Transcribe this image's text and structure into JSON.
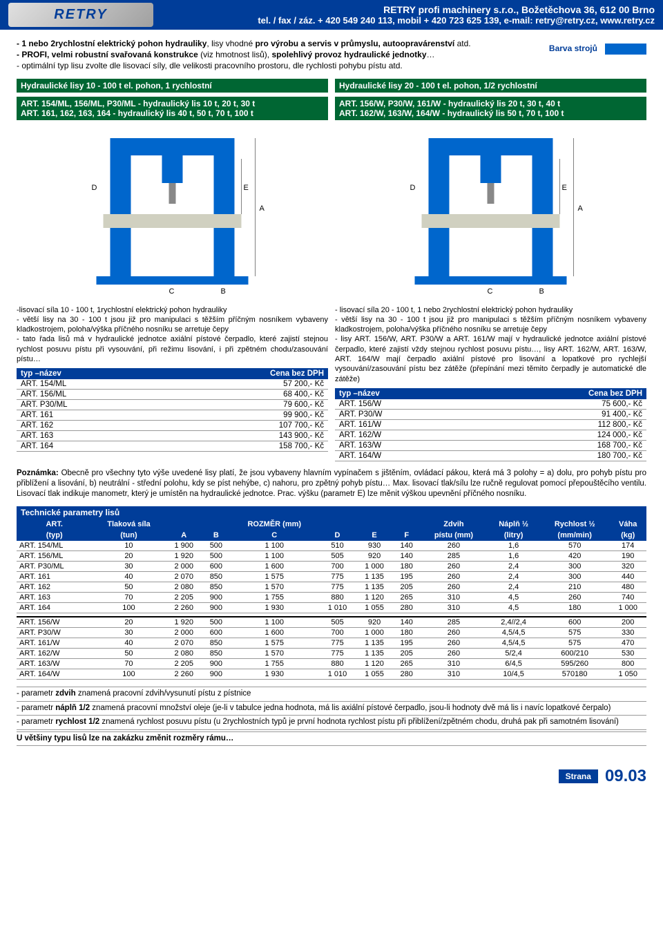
{
  "header": {
    "logo_text": "RETRY",
    "company": "RETRY profi machinery s.r.o., Božetěchova 36, 612 00 Brno",
    "contact": "tel. / fax / záz. + 420 549 240 113, mobil + 420 723 625 139, e-mail: retry@retry.cz, www.retry.cz"
  },
  "intro": {
    "line1_a": "- 1 nebo 2rychlostní elektrický pohon hydrauliky",
    "line1_b": ", lisy vhodné ",
    "line1_c": "pro výrobu a servis v průmyslu, autoopravárenství",
    "line1_d": " atd.",
    "line2_a": "- PROFI, velmi robustní svařovaná konstrukce",
    "line2_b": " (viz hmotnost lisů), ",
    "line2_c": "spolehlivý provoz hydraulické jednotky",
    "line2_d": "…",
    "line3": "- optimální typ lisu zvolte dle lisovací síly, dle velikosti pracovního prostoru, dle rychlosti pohybu pístu atd.",
    "color_label": "Barva strojů"
  },
  "left": {
    "title1": "Hydraulické lisy 10 - 100 t el. pohon, 1 rychlostní",
    "title2a": "ART. 154/ML, 156/ML, P30/ML",
    "title2b": " - hydraulický lis ",
    "title2c": "10 t, 20 t, 30 t",
    "title3a": "ART. 161, 162, 163, 164",
    "title3b": " - hydraulický lis ",
    "title3c": "40 t, 50 t, 70 t, 100 t",
    "desc": "-lisovací síla 10 - 100 t, 1rychlostní elektrický pohon hydrauliky\n- větší lisy na 30 - 100 t jsou již pro manipulaci s těžším příčným nosníkem vybaveny kladkostrojem, poloha/výška příčného nosníku se arretuje čepy\n- tato řada lisů má v hydraulické jednotce axiální pístové čerpadlo, které zajistí stejnou rychlost posuvu pístu při vysouvání, při režimu lisování, i při zpětném chodu/zasouvání pístu…",
    "price_header": [
      "typ –název",
      "Cena bez DPH"
    ],
    "prices": [
      [
        "ART. 154/ML",
        "57 200,- Kč"
      ],
      [
        "ART. 156/ML",
        "68 400,- Kč"
      ],
      [
        "ART. P30/ML",
        "79 600,- Kč"
      ],
      [
        "ART. 161",
        "99 900,- Kč"
      ],
      [
        "ART. 162",
        "107 700,- Kč"
      ],
      [
        "ART. 163",
        "143 900,- Kč"
      ],
      [
        "ART. 164",
        "158 700,- Kč"
      ]
    ]
  },
  "right": {
    "title1": "Hydraulické lisy 20 - 100 t el. pohon, 1/2  rychlostní",
    "title2a": "ART. 156/W, P30/W, 161/W",
    "title2b": " - hydraulický lis ",
    "title2c": "20 t, 30 t, 40 t",
    "title3a": "ART. 162/W, 163/W, 164/W",
    "title3b": " - hydraulický lis ",
    "title3c": "50 t, 70 t, 100 t",
    "desc": "- lisovací síla 20 - 100 t, 1 nebo 2rychlostní elektrický pohon hydrauliky\n- větší lisy na 30 - 100 t jsou již pro manipulaci s těžším příčným nosníkem vybaveny kladkostrojem, poloha/výška příčného nosníku se arretuje čepy\n- lisy ART. 156/W, ART. P30/W a ART. 161/W mají v hydraulické jednotce axiální pístové čerpadlo, které zajistí vždy stejnou rychlost posuvu pístu…, lisy ART. 162/W, ART. 163/W, ART. 164/W mají čerpadlo axiální pístové pro lisování a lopatkové pro rychlejší vysouvání/zasouvání pístu bez zátěže (přepínání mezi těmito čerpadly je automatické dle zátěže)",
    "price_header": [
      "typ –název",
      "Cena bez DPH"
    ],
    "prices": [
      [
        "ART. 156/W",
        "75 600,- Kč"
      ],
      [
        "ART. P30/W",
        "91 400,- Kč"
      ],
      [
        "ART. 161/W",
        "112 800,- Kč"
      ],
      [
        "ART. 162/W",
        "124 000,- Kč"
      ],
      [
        "ART. 163/W",
        "168 700,- Kč"
      ],
      [
        "ART. 164/W",
        "180 700,- Kč"
      ]
    ]
  },
  "note": "Poznámka: Obecně pro všechny tyto výše uvedené lisy platí, že jsou vybaveny hlavním vypínačem s jištěním, ovládací pákou, která má 3 polohy = a) dolu, pro pohyb pístu pro přiblížení a lisování, b) neutrální - střední polohu, kdy se píst nehýbe, c) nahoru, pro zpětný pohyb pístu… Max. lisovací tlak/sílu lze ručně regulovat pomocí přepouštěcího ventilu. Lisovací tlak indikuje manometr, který je umístěn na hydraulické jednotce. Prac. výšku (parametr E) lze měnit výškou upevnění příčného nosníku.",
  "tech": {
    "title": "Technické parametry lisů",
    "headers1": [
      "ART.",
      "Tlaková síla",
      "",
      "",
      "ROZMĚR (mm)",
      "",
      "",
      "",
      "Zdvih",
      "Náplň ½",
      "Rychlost ½",
      "Váha"
    ],
    "headers2": [
      "(typ)",
      "(tun)",
      "A",
      "B",
      "C",
      "D",
      "E",
      "F",
      "pístu (mm)",
      "(litry)",
      "(mm/min)",
      "(kg)"
    ],
    "rows1": [
      [
        "ART. 154/ML",
        "10",
        "1 900",
        "500",
        "1 100",
        "510",
        "930",
        "140",
        "260",
        "1,6",
        "570",
        "174"
      ],
      [
        "ART. 156/ML",
        "20",
        "1 920",
        "500",
        "1 100",
        "505",
        "920",
        "140",
        "285",
        "1,6",
        "420",
        "190"
      ],
      [
        "ART. P30/ML",
        "30",
        "2 000",
        "600",
        "1 600",
        "700",
        "1 000",
        "180",
        "260",
        "2,4",
        "300",
        "320"
      ],
      [
        "ART. 161",
        "40",
        "2 070",
        "850",
        "1 575",
        "775",
        "1 135",
        "195",
        "260",
        "2,4",
        "300",
        "440"
      ],
      [
        "ART. 162",
        "50",
        "2 080",
        "850",
        "1 570",
        "775",
        "1 135",
        "205",
        "260",
        "2,4",
        "210",
        "480"
      ],
      [
        "ART. 163",
        "70",
        "2 205",
        "900",
        "1 755",
        "880",
        "1 120",
        "265",
        "310",
        "4,5",
        "260",
        "740"
      ],
      [
        "ART. 164",
        "100",
        "2 260",
        "900",
        "1 930",
        "1 010",
        "1 055",
        "280",
        "310",
        "4,5",
        "180",
        "1 000"
      ]
    ],
    "rows2": [
      [
        "ART. 156/W",
        "20",
        "1 920",
        "500",
        "1 100",
        "505",
        "920",
        "140",
        "285",
        "2,4//2,4",
        "600",
        "200"
      ],
      [
        "ART. P30/W",
        "30",
        "2 000",
        "600",
        "1 600",
        "700",
        "1 000",
        "180",
        "260",
        "4,5/4,5",
        "575",
        "330"
      ],
      [
        "ART. 161/W",
        "40",
        "2 070",
        "850",
        "1 575",
        "775",
        "1 135",
        "195",
        "260",
        "4,5/4,5",
        "575",
        "470"
      ],
      [
        "ART. 162/W",
        "50",
        "2 080",
        "850",
        "1 570",
        "775",
        "1 135",
        "205",
        "260",
        "5/2,4",
        "600/210",
        "530"
      ],
      [
        "ART. 163/W",
        "70",
        "2 205",
        "900",
        "1 755",
        "880",
        "1 120",
        "265",
        "310",
        "6/4,5",
        "595/260",
        "800"
      ],
      [
        "ART. 164/W",
        "100",
        "2 260",
        "900",
        "1 930",
        "1 010",
        "1 055",
        "280",
        "310",
        "10/4,5",
        "570180",
        "1 050"
      ]
    ]
  },
  "params": {
    "p1a": "- parametr ",
    "p1b": "zdvih",
    "p1c": " znamená pracovní zdvih/vysunutí pístu z pístnice",
    "p2a": "- parametr ",
    "p2b": "náplň 1/2",
    "p2c": " znamená pracovní množství oleje (je-li v tabulce jedna hodnota, má lis axiální pístové čerpadlo, jsou-li hodnoty dvě má lis i navíc lopatkové čerpalo)",
    "p3a": "- parametr ",
    "p3b": "rychlost 1/2",
    "p3c": " znamená rychlost posuvu pístu (u 2rychlostních typů je první hodnota rychlost pístu při přiblížení/zpětném chodu, druhá pak při samotném lisování)",
    "final": "U většiny typu lisů lze na zakázku změnit rozměry rámu…"
  },
  "footer": {
    "strana": "Strana",
    "page": "09.03"
  },
  "colors": {
    "blue": "#003d99",
    "green": "#006633",
    "press_blue": "#0066cc",
    "swatch": "#0066cc"
  }
}
